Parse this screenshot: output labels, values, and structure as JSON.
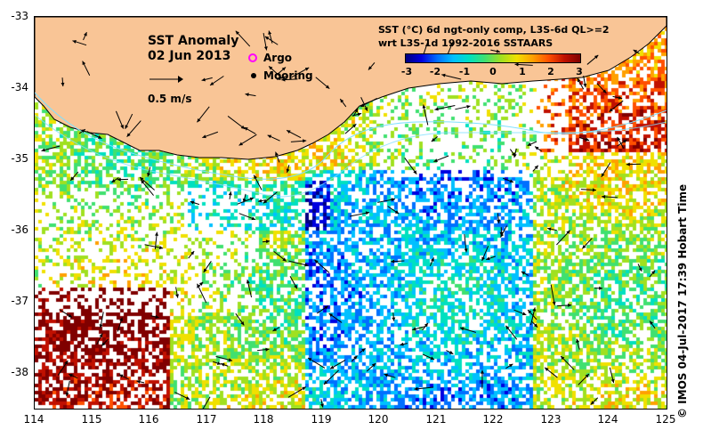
{
  "title": {
    "line1": "SST Anomaly",
    "line2": "02 Jun 2013"
  },
  "scale_label": "0.5 m/s",
  "legend": {
    "argo": "Argo",
    "mooring": "Mooring"
  },
  "product": {
    "line1": "SST (°C) 6d ngt-only comp, L3S-6d QL>=2",
    "line2": "wrt L3S-1d 1992-2016 SSTAARS"
  },
  "colorbar": {
    "ticks": [
      "-3",
      "-2",
      "-1",
      "0",
      "1",
      "2",
      "3"
    ],
    "min": -3,
    "max": 3
  },
  "axes": {
    "y_labels": [
      "-33",
      "-34",
      "-35",
      "-36",
      "-37",
      "-38"
    ],
    "x_labels": [
      "114",
      "115",
      "116",
      "117",
      "118",
      "119",
      "120",
      "121",
      "122",
      "123",
      "124",
      "125"
    ]
  },
  "credit": "© IMOS 04-Jul-2017 17:39 Hobart Time",
  "colors": {
    "land": "#f9c596",
    "background": "#ffffff"
  }
}
